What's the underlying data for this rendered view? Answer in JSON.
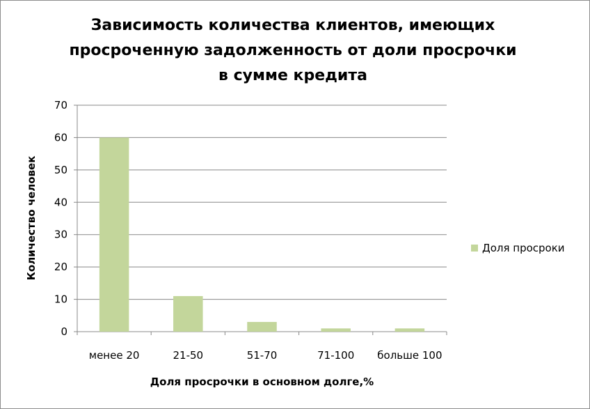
{
  "chart_data": {
    "type": "bar",
    "title": "Зависимость количества клиентов, имеющих просроченную задолженность от доли просрочки в сумме кредита",
    "xlabel": "Доля просрочки в основном долге,%",
    "ylabel": "Количество человек",
    "categories": [
      "менее 20",
      "21-50",
      "51-70",
      "71-100",
      "больше 100"
    ],
    "series": [
      {
        "name": "Доля просроки",
        "values": [
          60,
          11,
          3,
          1,
          1
        ],
        "color": "#c3d69b"
      }
    ],
    "ylim": [
      0,
      70
    ],
    "yticks": [
      0,
      10,
      20,
      30,
      40,
      50,
      60,
      70
    ],
    "grid": true,
    "legend_position": "right"
  }
}
